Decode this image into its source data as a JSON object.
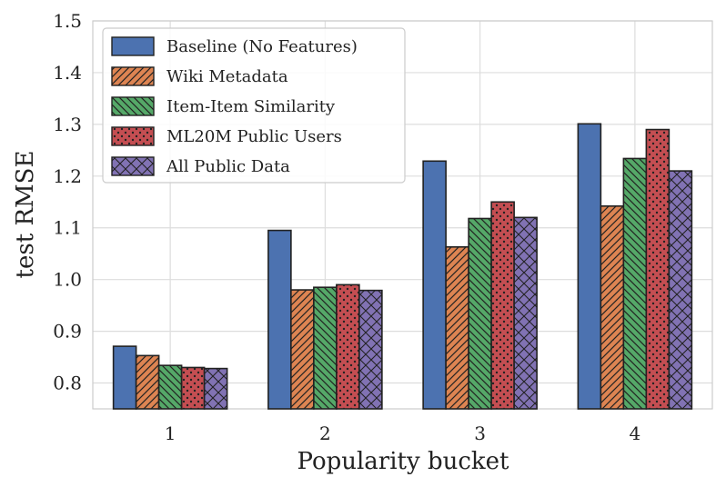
{
  "chart_data": {
    "type": "bar",
    "xlabel": "Popularity bucket",
    "ylabel": "test RMSE",
    "categories": [
      "1",
      "2",
      "3",
      "4"
    ],
    "ylim": [
      0.75,
      1.5
    ],
    "yticks": [
      0.8,
      0.9,
      1.0,
      1.1,
      1.2,
      1.3,
      1.4,
      1.5
    ],
    "ytick_labels": [
      "0.8",
      "0.9",
      "1.0",
      "1.1",
      "1.2",
      "1.3",
      "1.4",
      "1.5"
    ],
    "grid": true,
    "legend_position": "top-left",
    "series": [
      {
        "name": "Baseline (No Features)",
        "values": [
          0.871,
          1.095,
          1.229,
          1.301
        ],
        "color": "#4c72b0",
        "hatch": "none"
      },
      {
        "name": "Wiki Metadata",
        "values": [
          0.853,
          0.98,
          1.063,
          1.142
        ],
        "color": "#dd8452",
        "hatch": "diagonal"
      },
      {
        "name": "Item-Item Similarity",
        "values": [
          0.834,
          0.985,
          1.118,
          1.234
        ],
        "color": "#55a868",
        "hatch": "backdiagonal"
      },
      {
        "name": "ML20M Public Users",
        "values": [
          0.83,
          0.99,
          1.15,
          1.29
        ],
        "color": "#c44e52",
        "hatch": "dots"
      },
      {
        "name": "All Public Data",
        "values": [
          0.828,
          0.979,
          1.12,
          1.21
        ],
        "color": "#8172b3",
        "hatch": "crosshatch"
      }
    ]
  }
}
